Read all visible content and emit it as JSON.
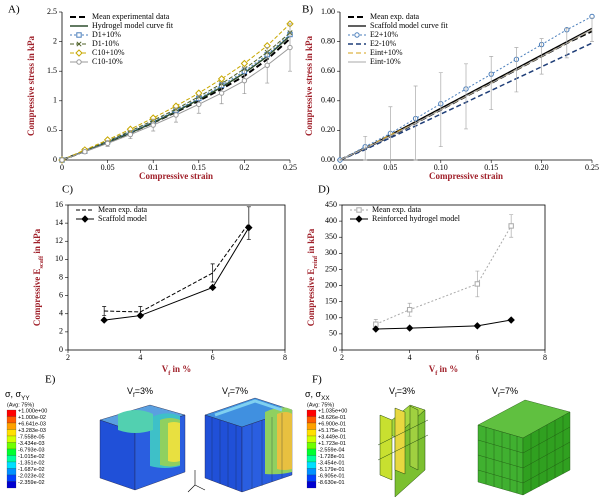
{
  "chart_data": [
    {
      "type": "line",
      "panel_label": "A)",
      "xlabel": "Compressive strain",
      "ylabel": "Compressive stress in kPa",
      "x": [
        0,
        0.025,
        0.05,
        0.075,
        0.1,
        0.125,
        0.15,
        0.175,
        0.2,
        0.225,
        0.25
      ],
      "xlim": [
        0,
        0.25
      ],
      "xticks": [
        0,
        0.05,
        0.1,
        0.15,
        0.2,
        0.25
      ],
      "ylim": [
        0,
        2.5
      ],
      "yticks": [
        0,
        0.5,
        1,
        1.5,
        2,
        2.5
      ],
      "legend": "upper left",
      "frame": false,
      "series": [
        {
          "name": "Mean experimental data",
          "color": "#000000",
          "dash": "6,3",
          "width": 2,
          "values": [
            0,
            0.15,
            0.3,
            0.46,
            0.63,
            0.81,
            1.0,
            1.2,
            1.42,
            1.7,
            2.05
          ]
        },
        {
          "name": "Hydrogel model curve fit",
          "color": "#2f4f2f",
          "width": 1.5,
          "values": [
            0,
            0.15,
            0.3,
            0.46,
            0.63,
            0.82,
            1.02,
            1.23,
            1.47,
            1.75,
            2.1
          ]
        },
        {
          "name": "D1+10%",
          "color": "#4a7ebb",
          "dash": "2,2",
          "marker": "square",
          "values": [
            0,
            0.15,
            0.31,
            0.47,
            0.65,
            0.84,
            1.04,
            1.26,
            1.5,
            1.78,
            2.12
          ]
        },
        {
          "name": "D1-10%",
          "color": "#4f6228",
          "dash": "4,2",
          "marker": "x",
          "values": [
            0,
            0.16,
            0.32,
            0.49,
            0.67,
            0.86,
            1.07,
            1.29,
            1.54,
            1.82,
            2.15
          ]
        },
        {
          "name": "C10+10%",
          "color": "#c8a800",
          "dash": "4,2",
          "marker": "diamond",
          "values": [
            0,
            0.17,
            0.34,
            0.52,
            0.71,
            0.91,
            1.13,
            1.37,
            1.63,
            1.93,
            2.3
          ]
        },
        {
          "name": "C10-10%",
          "color": "#999999",
          "marker": "circle",
          "values": [
            0,
            0.14,
            0.28,
            0.43,
            0.59,
            0.76,
            0.94,
            1.13,
            1.34,
            1.6,
            1.9
          ],
          "errors": [
            0,
            0.03,
            0.05,
            0.07,
            0.1,
            0.12,
            0.15,
            0.18,
            0.22,
            0.3,
            0.4
          ]
        }
      ]
    },
    {
      "type": "line",
      "panel_label": "B)",
      "xlabel": "Compressive strain",
      "ylabel": "Compressive stress in kPa",
      "x": [
        0,
        0.025,
        0.05,
        0.075,
        0.1,
        0.125,
        0.15,
        0.175,
        0.2,
        0.225,
        0.25
      ],
      "xlim": [
        0,
        0.25
      ],
      "xticks": [
        {
          "value": 0,
          "label": "0.00"
        },
        {
          "value": 0.05,
          "label": "0.05"
        },
        {
          "value": 0.1,
          "label": "0.10"
        },
        {
          "value": 0.15,
          "label": "0.15"
        },
        {
          "value": 0.2,
          "label": "0.20"
        },
        {
          "value": 0.25,
          "label": "0.25"
        }
      ],
      "ylim": [
        0,
        1
      ],
      "yticks": [
        {
          "value": 0,
          "label": "0.00"
        },
        {
          "value": 0.2,
          "label": "0.20"
        },
        {
          "value": 0.4,
          "label": "0.40"
        },
        {
          "value": 0.6,
          "label": "0.60"
        },
        {
          "value": 0.8,
          "label": "0.80"
        },
        {
          "value": 1,
          "label": "1.00"
        }
      ],
      "legend": "upper left",
      "frame": false,
      "series": [
        {
          "name": "Mean exp. data",
          "color": "#000000",
          "dash": "6,3",
          "width": 2,
          "values": [
            0,
            0.08,
            0.16,
            0.25,
            0.34,
            0.43,
            0.52,
            0.61,
            0.7,
            0.79,
            0.87
          ]
        },
        {
          "name": "Scaffold model curve fit",
          "color": "#000000",
          "width": 1.2,
          "values": [
            0,
            0.08,
            0.17,
            0.26,
            0.35,
            0.44,
            0.53,
            0.62,
            0.71,
            0.8,
            0.89
          ]
        },
        {
          "name": "E2+10%",
          "color": "#4a7ebb",
          "dash": "2,2",
          "marker": "circle",
          "values": [
            0,
            0.09,
            0.18,
            0.28,
            0.38,
            0.48,
            0.58,
            0.68,
            0.78,
            0.88,
            0.97
          ]
        },
        {
          "name": "E2-10%",
          "color": "#1f3e78",
          "dash": "5,3",
          "width": 1.5,
          "values": [
            0,
            0.07,
            0.15,
            0.23,
            0.31,
            0.39,
            0.47,
            0.55,
            0.63,
            0.71,
            0.79
          ]
        },
        {
          "name": "Eint+10%",
          "color": "#d4a017",
          "dash": "5,3",
          "values": [
            0,
            0.08,
            0.17,
            0.25,
            0.34,
            0.43,
            0.52,
            0.61,
            0.7,
            0.79,
            0.88
          ]
        },
        {
          "name": "Eint-10%",
          "color": "#aaaaaa",
          "values": [
            0,
            0.08,
            0.16,
            0.25,
            0.34,
            0.43,
            0.52,
            0.61,
            0.7,
            0.79,
            0.88
          ],
          "errors": [
            0,
            0.08,
            0.2,
            0.25,
            0.25,
            0.22,
            0.18,
            0.15,
            0.12,
            0.1,
            0.08
          ]
        }
      ]
    },
    {
      "type": "line",
      "panel_label": "C)",
      "xlabel": [
        "V",
        "f",
        " in %"
      ],
      "ylabel": [
        "Compressive E",
        "scaff",
        " in kPa"
      ],
      "x": [
        3,
        4,
        6,
        7
      ],
      "xlim": [
        2,
        8
      ],
      "xticks": [
        2,
        4,
        6,
        8
      ],
      "ylim": [
        0,
        16
      ],
      "yticks": [
        0,
        2,
        4,
        6,
        8,
        10,
        12,
        14,
        16
      ],
      "legend": "upper left",
      "frame": true,
      "series": [
        {
          "name": "Mean exp. data",
          "color": "#000000",
          "dash": "4,2",
          "values": [
            4.3,
            4.2,
            8.5,
            14
          ],
          "errors": [
            0.5,
            0.6,
            1,
            1.8
          ]
        },
        {
          "name": "Scaffold model",
          "color": "#000000",
          "marker": "diamond",
          "marker_fill": "#000000",
          "values": [
            3.3,
            3.8,
            6.9,
            13.5
          ]
        }
      ]
    },
    {
      "type": "line",
      "panel_label": "D)",
      "xlabel": [
        "V",
        "f",
        " in %"
      ],
      "ylabel": [
        "Compressive E",
        "reinf",
        " in kPa"
      ],
      "x": [
        3,
        4,
        6,
        7
      ],
      "xlim": [
        2,
        8
      ],
      "xticks": [
        2,
        4,
        6,
        8
      ],
      "ylim": [
        0,
        450
      ],
      "yticks": [
        0,
        50,
        100,
        150,
        200,
        250,
        300,
        350,
        400,
        450
      ],
      "legend": "upper left",
      "frame": true,
      "series": [
        {
          "name": "Mean exp. data",
          "color": "#aaaaaa",
          "dash": "2,2",
          "marker": "square",
          "values": [
            80,
            125,
            205,
            385
          ],
          "errors": [
            15,
            20,
            40,
            35
          ]
        },
        {
          "name": "Reinforced hydrogel model",
          "color": "#000000",
          "marker": "diamond",
          "marker_fill": "#000000",
          "values": [
            65,
            68,
            75,
            93
          ]
        }
      ]
    }
  ],
  "fea_panels": [
    {
      "panel_label": "E)",
      "title": [
        "σ, σ",
        "YY"
      ],
      "avg": "(Avg: 75%)",
      "contour_labels": [
        "+1.000e+00",
        "+1.000e-02",
        "+6.641e-03",
        "+3.283e-03",
        "-7.558e-05",
        "-3.434e-03",
        "-6.793e-03",
        "-1.015e-02",
        "-1.351e-02",
        "-1.687e-02",
        "-2.023e-02",
        "-2.359e-02"
      ],
      "models": [
        [
          "V",
          "f",
          "=3%"
        ],
        [
          "V",
          "f",
          "=7%"
        ]
      ]
    },
    {
      "panel_label": "F)",
      "title": [
        "σ, σ",
        "XX"
      ],
      "avg": "(Avg: 75%)",
      "contour_labels": [
        "+1.035e+00",
        "+8.626e-01",
        "+6.900e-01",
        "+5.175e-01",
        "+3.449e-01",
        "+1.723e-01",
        "-2.559e-04",
        "-1.728e-01",
        "-3.454e-01",
        "-5.179e-01",
        "-6.905e-01",
        "-8.630e-01"
      ],
      "models": [
        [
          "V",
          "f",
          "=3%"
        ],
        [
          "V",
          "f",
          "=7%"
        ]
      ]
    }
  ]
}
